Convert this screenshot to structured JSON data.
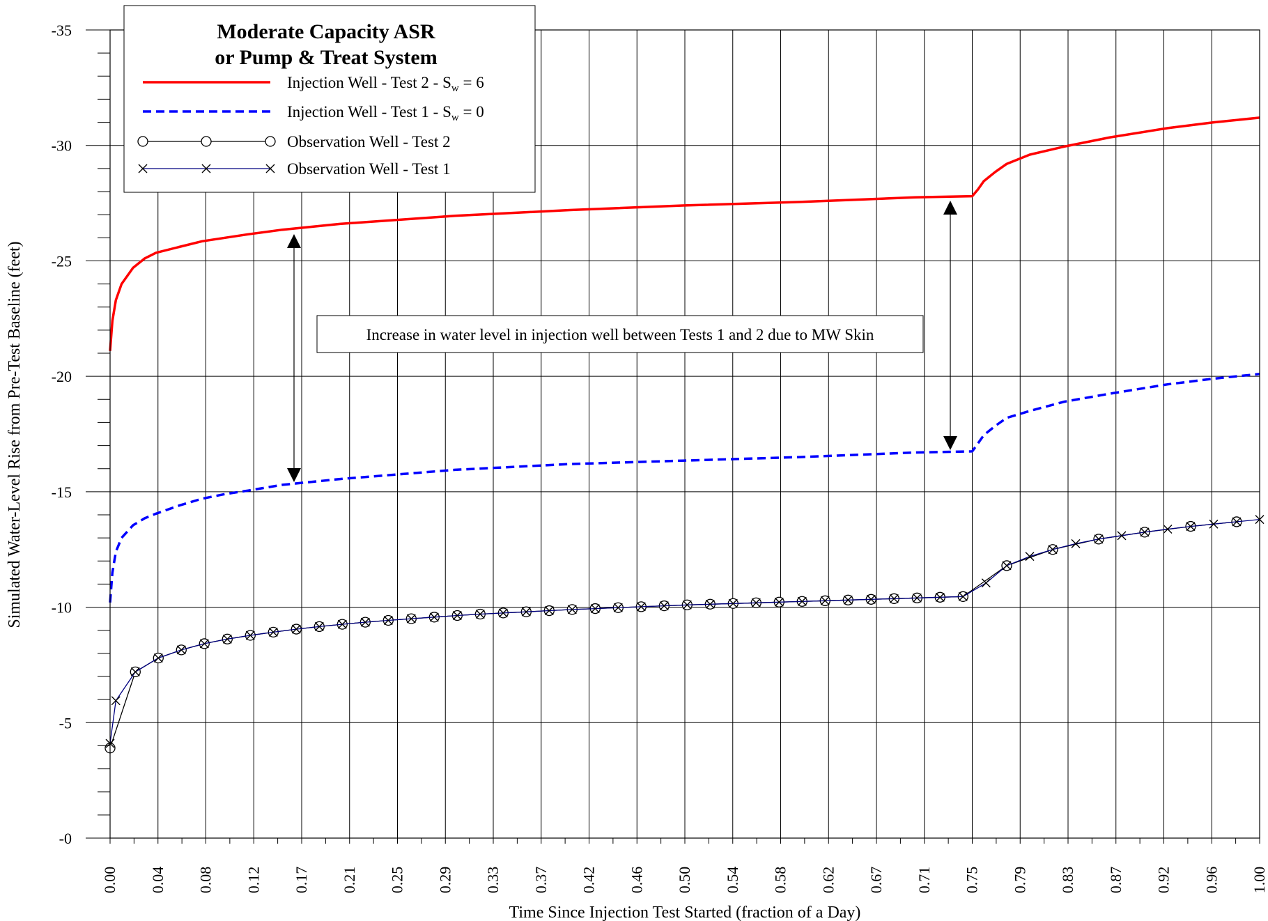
{
  "chart_data": {
    "type": "line",
    "title": "Moderate Capacity ASR",
    "subtitle": "or Pump & Treat System",
    "xlabel": "Time Since Injection Test Started (fraction of a Day)",
    "ylabel": "Simulated Water-Level Rise from Pre-Test Baseline (feet)",
    "xlim": [
      0,
      1
    ],
    "ylim": [
      0,
      -35
    ],
    "grid": true,
    "legend_placement": "top-left",
    "x_tick_labels": [
      "0.00",
      "0.04",
      "0.08",
      "0.12",
      "0.17",
      "0.21",
      "0.25",
      "0.29",
      "0.33",
      "0.37",
      "0.42",
      "0.46",
      "0.50",
      "0.54",
      "0.58",
      "0.62",
      "0.67",
      "0.71",
      "0.75",
      "0.79",
      "0.83",
      "0.87",
      "0.92",
      "0.96",
      "1.00"
    ],
    "y_tick_labels": [
      "-0",
      "-5",
      "-10",
      "-15",
      "-20",
      "-25",
      "-30",
      "-35"
    ],
    "annotation": "Increase in water level in injection well between Tests 1 and 2 due to MW Skin",
    "series": [
      {
        "name": "Injection Well - Test 2 - S",
        "name_sub": "w",
        "name_suffix": " = 6",
        "color": "#ff0000",
        "style": "solid",
        "x": [
          0,
          0.002,
          0.005,
          0.01,
          0.02,
          0.03,
          0.04,
          0.06,
          0.08,
          0.1,
          0.12,
          0.15,
          0.2,
          0.3,
          0.4,
          0.5,
          0.6,
          0.7,
          0.75,
          0.755,
          0.76,
          0.77,
          0.78,
          0.8,
          0.83,
          0.87,
          0.92,
          0.96,
          1.0
        ],
        "y": [
          -21.1,
          -22.4,
          -23.3,
          -24.0,
          -24.7,
          -25.1,
          -25.35,
          -25.6,
          -25.85,
          -26.0,
          -26.15,
          -26.35,
          -26.6,
          -26.95,
          -27.2,
          -27.4,
          -27.55,
          -27.75,
          -27.8,
          -28.1,
          -28.45,
          -28.85,
          -29.2,
          -29.6,
          -29.95,
          -30.35,
          -30.75,
          -31.0,
          -31.2
        ]
      },
      {
        "name": "Injection Well - Test 1 - S",
        "name_sub": "w",
        "name_suffix": " = 0",
        "color": "#0000ff",
        "style": "dashed",
        "x": [
          0,
          0.002,
          0.005,
          0.01,
          0.02,
          0.03,
          0.04,
          0.06,
          0.08,
          0.1,
          0.12,
          0.15,
          0.2,
          0.3,
          0.4,
          0.5,
          0.6,
          0.7,
          0.75,
          0.755,
          0.76,
          0.77,
          0.78,
          0.8,
          0.83,
          0.87,
          0.92,
          0.96,
          1.0
        ],
        "y": [
          -10.2,
          -11.5,
          -12.4,
          -13.0,
          -13.55,
          -13.85,
          -14.05,
          -14.4,
          -14.7,
          -14.9,
          -15.05,
          -15.3,
          -15.55,
          -15.95,
          -16.2,
          -16.35,
          -16.5,
          -16.7,
          -16.75,
          -17.1,
          -17.45,
          -17.85,
          -18.2,
          -18.5,
          -18.9,
          -19.25,
          -19.65,
          -19.9,
          -20.1
        ]
      },
      {
        "name": "Observation Well - Test 2",
        "color": "#000000",
        "style": "solid",
        "marker": "circle",
        "x": [
          0,
          0.022,
          0.042,
          0.062,
          0.082,
          0.102,
          0.122,
          0.142,
          0.162,
          0.182,
          0.202,
          0.222,
          0.242,
          0.262,
          0.282,
          0.302,
          0.322,
          0.342,
          0.362,
          0.382,
          0.402,
          0.422,
          0.442,
          0.462,
          0.482,
          0.502,
          0.522,
          0.542,
          0.562,
          0.582,
          0.602,
          0.622,
          0.642,
          0.662,
          0.682,
          0.702,
          0.722,
          0.742,
          0.78,
          0.82,
          0.86,
          0.9,
          0.94,
          0.98
        ],
        "y": [
          -3.9,
          -7.2,
          -7.8,
          -8.15,
          -8.42,
          -8.62,
          -8.78,
          -8.92,
          -9.05,
          -9.16,
          -9.26,
          -9.35,
          -9.43,
          -9.5,
          -9.57,
          -9.64,
          -9.7,
          -9.75,
          -9.8,
          -9.85,
          -9.9,
          -9.94,
          -9.98,
          -10.02,
          -10.06,
          -10.1,
          -10.13,
          -10.16,
          -10.19,
          -10.22,
          -10.25,
          -10.28,
          -10.31,
          -10.34,
          -10.37,
          -10.4,
          -10.43,
          -10.46,
          -11.8,
          -12.5,
          -12.95,
          -13.25,
          -13.5,
          -13.7
        ]
      },
      {
        "name": "Observation Well - Test 1",
        "color": "#000080",
        "style": "solid",
        "marker": "x",
        "x": [
          0,
          0.005,
          0.022,
          0.042,
          0.062,
          0.082,
          0.102,
          0.122,
          0.142,
          0.162,
          0.182,
          0.202,
          0.222,
          0.242,
          0.262,
          0.282,
          0.302,
          0.322,
          0.342,
          0.362,
          0.382,
          0.402,
          0.422,
          0.442,
          0.462,
          0.482,
          0.502,
          0.522,
          0.542,
          0.562,
          0.582,
          0.602,
          0.622,
          0.642,
          0.662,
          0.682,
          0.702,
          0.722,
          0.742,
          0.762,
          0.78,
          0.8,
          0.82,
          0.84,
          0.86,
          0.88,
          0.9,
          0.92,
          0.94,
          0.96,
          0.98,
          1.0
        ],
        "y": [
          -4.1,
          -5.95,
          -7.2,
          -7.8,
          -8.15,
          -8.42,
          -8.62,
          -8.78,
          -8.92,
          -9.05,
          -9.16,
          -9.26,
          -9.35,
          -9.43,
          -9.5,
          -9.57,
          -9.64,
          -9.7,
          -9.75,
          -9.8,
          -9.85,
          -9.9,
          -9.94,
          -9.98,
          -10.02,
          -10.06,
          -10.1,
          -10.13,
          -10.16,
          -10.19,
          -10.22,
          -10.25,
          -10.28,
          -10.31,
          -10.34,
          -10.37,
          -10.4,
          -10.43,
          -10.46,
          -11.05,
          -11.8,
          -12.2,
          -12.5,
          -12.75,
          -12.95,
          -13.1,
          -13.25,
          -13.38,
          -13.5,
          -13.6,
          -13.7,
          -13.8
        ]
      }
    ]
  }
}
